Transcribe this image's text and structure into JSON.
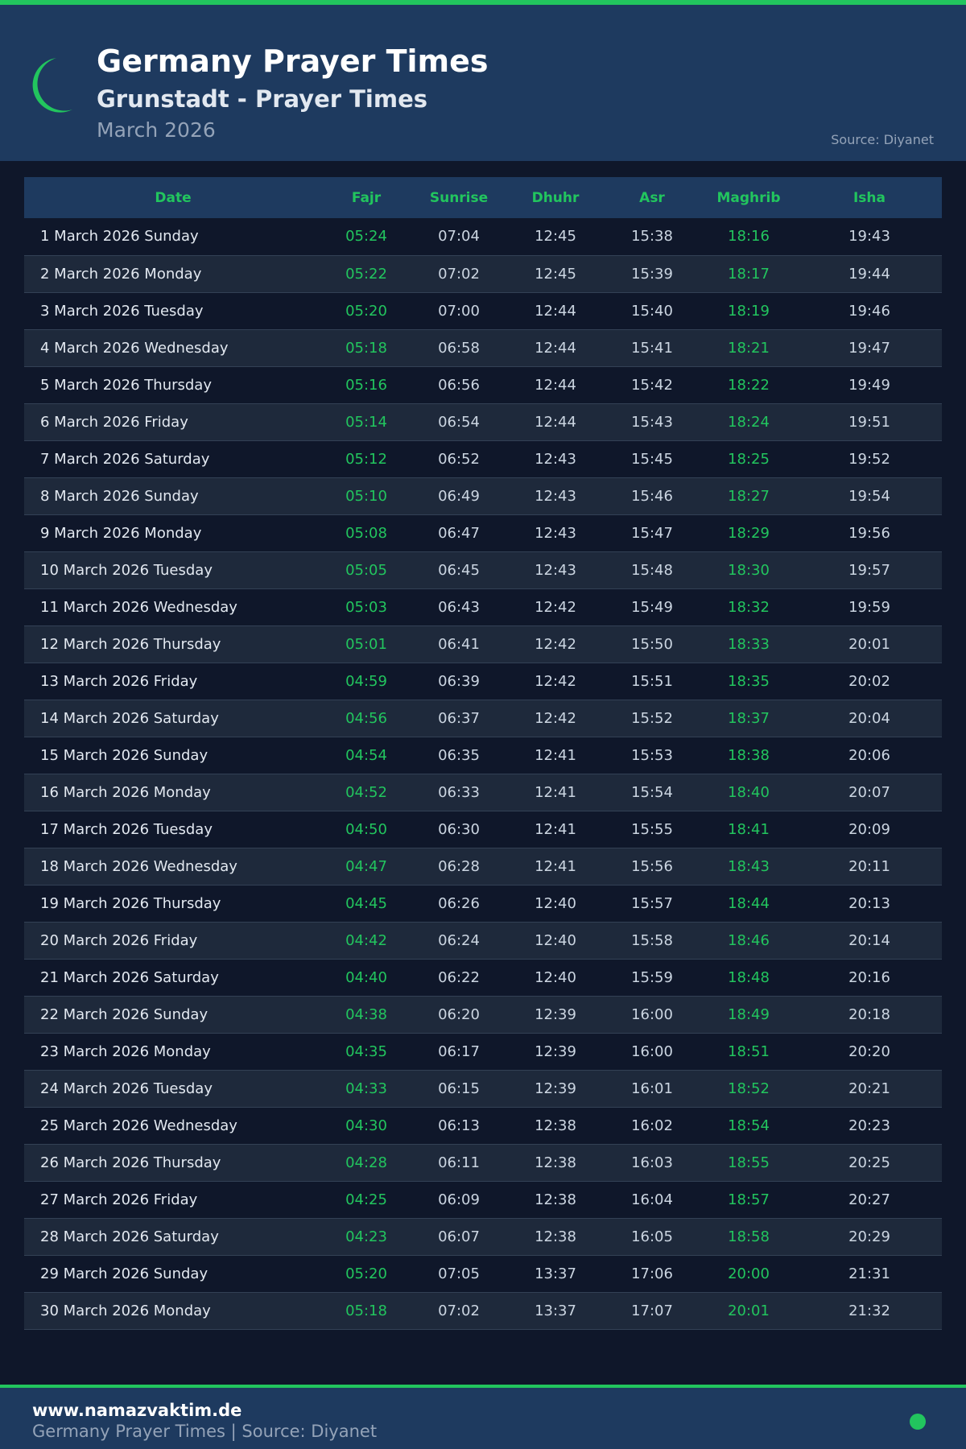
{
  "header": {
    "title": "Germany Prayer Times",
    "subtitle": "Grunstadt - Prayer Times",
    "month": "March 2026",
    "source": "Source: Diyanet"
  },
  "colors": {
    "accent": "#22c55e",
    "header_bg": "#1e3a5f",
    "page_bg": "#0f172a"
  },
  "table": {
    "columns": [
      "Date",
      "Fajr",
      "Sunrise",
      "Dhuhr",
      "Asr",
      "Maghrib",
      "Isha"
    ],
    "rows": [
      [
        "1 March 2026 Sunday",
        "05:24",
        "07:04",
        "12:45",
        "15:38",
        "18:16",
        "19:43"
      ],
      [
        "2 March 2026 Monday",
        "05:22",
        "07:02",
        "12:45",
        "15:39",
        "18:17",
        "19:44"
      ],
      [
        "3 March 2026 Tuesday",
        "05:20",
        "07:00",
        "12:44",
        "15:40",
        "18:19",
        "19:46"
      ],
      [
        "4 March 2026 Wednesday",
        "05:18",
        "06:58",
        "12:44",
        "15:41",
        "18:21",
        "19:47"
      ],
      [
        "5 March 2026 Thursday",
        "05:16",
        "06:56",
        "12:44",
        "15:42",
        "18:22",
        "19:49"
      ],
      [
        "6 March 2026 Friday",
        "05:14",
        "06:54",
        "12:44",
        "15:43",
        "18:24",
        "19:51"
      ],
      [
        "7 March 2026 Saturday",
        "05:12",
        "06:52",
        "12:43",
        "15:45",
        "18:25",
        "19:52"
      ],
      [
        "8 March 2026 Sunday",
        "05:10",
        "06:49",
        "12:43",
        "15:46",
        "18:27",
        "19:54"
      ],
      [
        "9 March 2026 Monday",
        "05:08",
        "06:47",
        "12:43",
        "15:47",
        "18:29",
        "19:56"
      ],
      [
        "10 March 2026 Tuesday",
        "05:05",
        "06:45",
        "12:43",
        "15:48",
        "18:30",
        "19:57"
      ],
      [
        "11 March 2026 Wednesday",
        "05:03",
        "06:43",
        "12:42",
        "15:49",
        "18:32",
        "19:59"
      ],
      [
        "12 March 2026 Thursday",
        "05:01",
        "06:41",
        "12:42",
        "15:50",
        "18:33",
        "20:01"
      ],
      [
        "13 March 2026 Friday",
        "04:59",
        "06:39",
        "12:42",
        "15:51",
        "18:35",
        "20:02"
      ],
      [
        "14 March 2026 Saturday",
        "04:56",
        "06:37",
        "12:42",
        "15:52",
        "18:37",
        "20:04"
      ],
      [
        "15 March 2026 Sunday",
        "04:54",
        "06:35",
        "12:41",
        "15:53",
        "18:38",
        "20:06"
      ],
      [
        "16 March 2026 Monday",
        "04:52",
        "06:33",
        "12:41",
        "15:54",
        "18:40",
        "20:07"
      ],
      [
        "17 March 2026 Tuesday",
        "04:50",
        "06:30",
        "12:41",
        "15:55",
        "18:41",
        "20:09"
      ],
      [
        "18 March 2026 Wednesday",
        "04:47",
        "06:28",
        "12:41",
        "15:56",
        "18:43",
        "20:11"
      ],
      [
        "19 March 2026 Thursday",
        "04:45",
        "06:26",
        "12:40",
        "15:57",
        "18:44",
        "20:13"
      ],
      [
        "20 March 2026 Friday",
        "04:42",
        "06:24",
        "12:40",
        "15:58",
        "18:46",
        "20:14"
      ],
      [
        "21 March 2026 Saturday",
        "04:40",
        "06:22",
        "12:40",
        "15:59",
        "18:48",
        "20:16"
      ],
      [
        "22 March 2026 Sunday",
        "04:38",
        "06:20",
        "12:39",
        "16:00",
        "18:49",
        "20:18"
      ],
      [
        "23 March 2026 Monday",
        "04:35",
        "06:17",
        "12:39",
        "16:00",
        "18:51",
        "20:20"
      ],
      [
        "24 March 2026 Tuesday",
        "04:33",
        "06:15",
        "12:39",
        "16:01",
        "18:52",
        "20:21"
      ],
      [
        "25 March 2026 Wednesday",
        "04:30",
        "06:13",
        "12:38",
        "16:02",
        "18:54",
        "20:23"
      ],
      [
        "26 March 2026 Thursday",
        "04:28",
        "06:11",
        "12:38",
        "16:03",
        "18:55",
        "20:25"
      ],
      [
        "27 March 2026 Friday",
        "04:25",
        "06:09",
        "12:38",
        "16:04",
        "18:57",
        "20:27"
      ],
      [
        "28 March 2026 Saturday",
        "04:23",
        "06:07",
        "12:38",
        "16:05",
        "18:58",
        "20:29"
      ],
      [
        "29 March 2026 Sunday",
        "05:20",
        "07:05",
        "13:37",
        "17:06",
        "20:00",
        "21:31"
      ],
      [
        "30 March 2026 Monday",
        "05:18",
        "07:02",
        "13:37",
        "17:07",
        "20:01",
        "21:32"
      ]
    ]
  },
  "footer": {
    "site": "www.namazvaktim.de",
    "tagline": "Germany Prayer Times | Source: Diyanet"
  }
}
